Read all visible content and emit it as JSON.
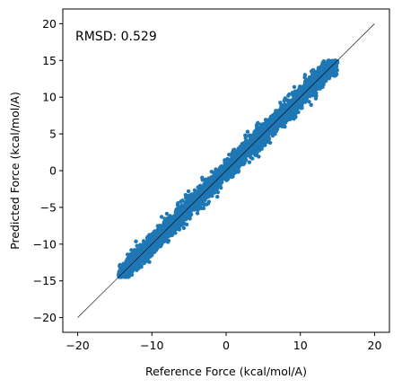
{
  "chart_data": {
    "type": "scatter",
    "xlabel": "Reference Force (kcal/mol/A)",
    "ylabel": "Predicted Force (kcal/mol/A)",
    "xlim": [
      -22,
      22
    ],
    "ylim": [
      -22,
      22
    ],
    "xticks": [
      "−20",
      "−10",
      "0",
      "10",
      "20"
    ],
    "yticks": [
      "−20",
      "−15",
      "−10",
      "−5",
      "0",
      "5",
      "10",
      "15",
      "20"
    ],
    "xtick_values": [
      -20,
      -10,
      0,
      10,
      20
    ],
    "ytick_values": [
      -20,
      -15,
      -10,
      -5,
      0,
      5,
      10,
      15,
      20
    ],
    "annotation": "RMSD: 0.529",
    "rmsd": 0.529,
    "point_color": "#1f77b4",
    "reference_line": {
      "x": [
        -20,
        20
      ],
      "y": [
        -20,
        20
      ],
      "color": "#000000"
    },
    "data_range": [
      -14.5,
      15
    ],
    "point_count": 4000
  }
}
